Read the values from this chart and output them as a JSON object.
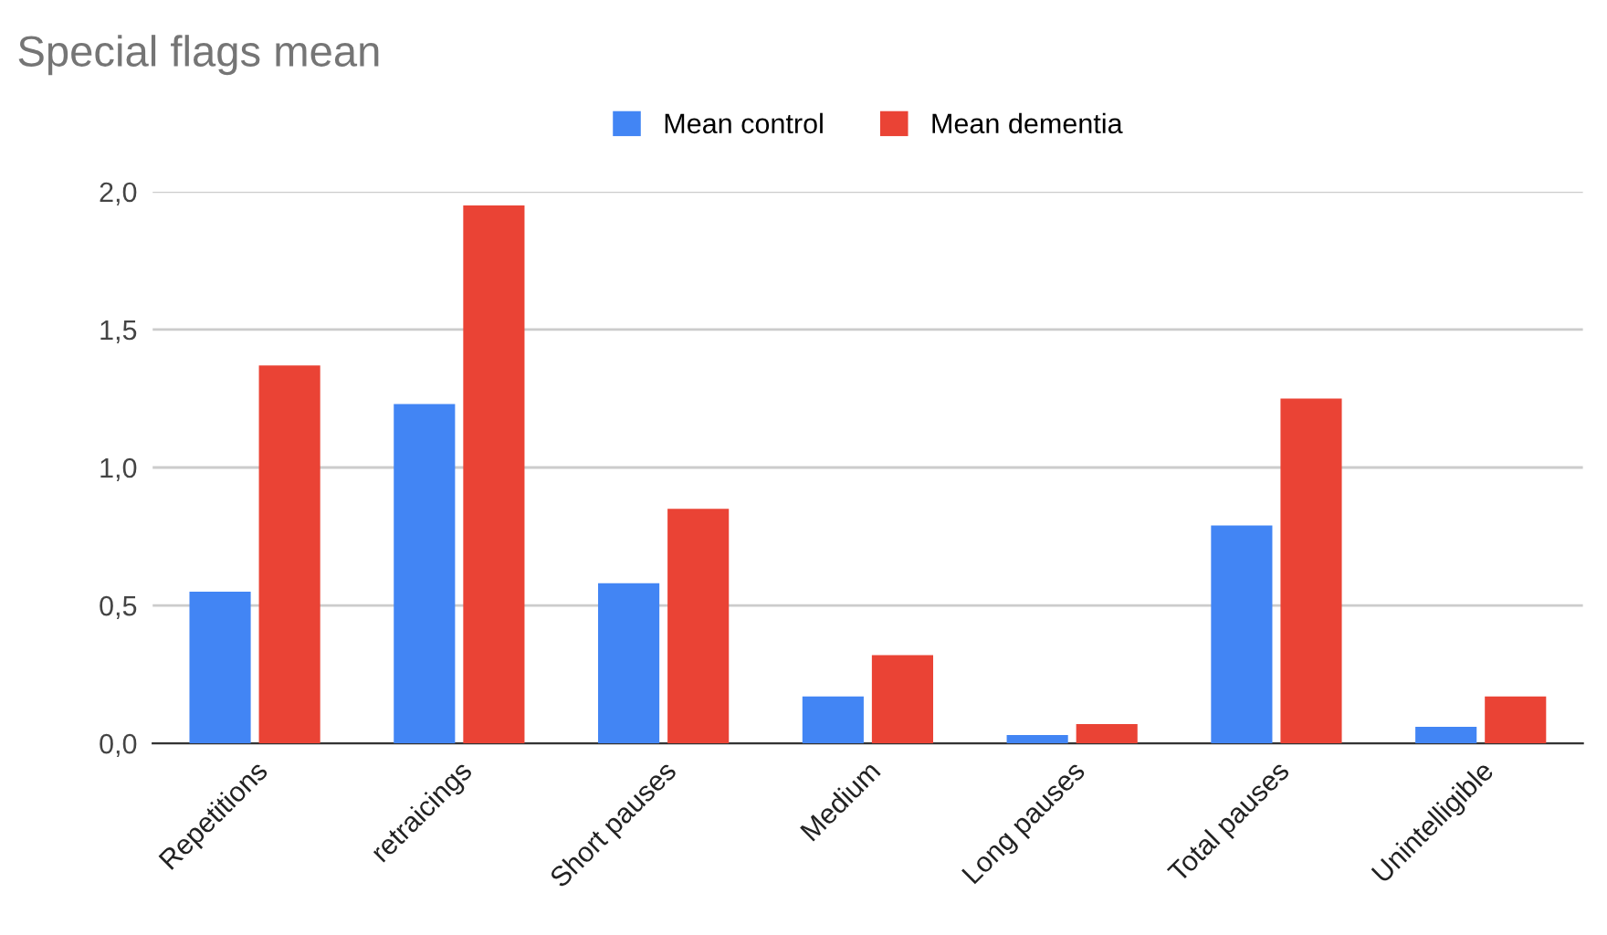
{
  "chart_data": {
    "type": "bar",
    "title": "Special flags mean",
    "categories": [
      "Repetitions",
      "retraicings",
      "Short pauses",
      "Medium",
      "Long pauses",
      "Total pauses",
      "Unintelligible"
    ],
    "series": [
      {
        "name": "Mean control",
        "color": "#4285f4",
        "values": [
          0.55,
          1.23,
          0.58,
          0.17,
          0.03,
          0.79,
          0.06
        ]
      },
      {
        "name": "Mean dementia",
        "color": "#ea4335",
        "values": [
          1.37,
          1.95,
          0.85,
          0.32,
          0.07,
          1.25,
          0.17
        ]
      }
    ],
    "ylim": [
      0,
      2.0
    ],
    "yticks": [
      {
        "value": 0,
        "label": "0,0"
      },
      {
        "value": 0.5,
        "label": "0,5"
      },
      {
        "value": 1.0,
        "label": "1,0"
      },
      {
        "value": 1.5,
        "label": "1,5"
      },
      {
        "value": 2.0,
        "label": "2,0"
      }
    ],
    "grid": "y",
    "legend": "top"
  }
}
